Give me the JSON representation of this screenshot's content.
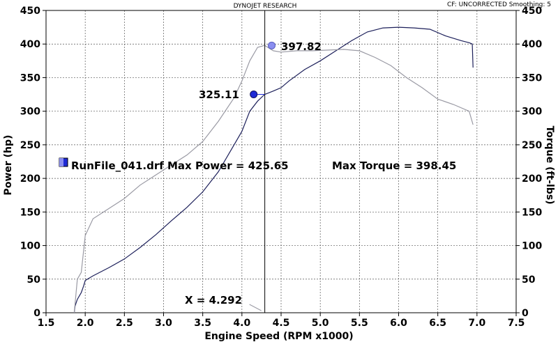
{
  "header": {
    "title": "DYNOJET RESEARCH",
    "correction": "CF: UNCORRECTED  Smoothing: 5"
  },
  "annotations": {
    "legend_text": "RunFile_041.drf Max Power = 425.65",
    "max_torque_text": "Max Torque = 398.45",
    "power_marker_label": "325.11",
    "torque_marker_label": "397.82",
    "cursor_label": "X = 4.292"
  },
  "colors": {
    "power_line": "#1c1f5a",
    "torque_line": "#9a9aa4",
    "power_marker": "#1f2bd6",
    "torque_marker": "#8a8ef0",
    "grid": "#555555"
  },
  "chart_data": {
    "type": "line",
    "xlabel": "Engine Speed (RPM x1000)",
    "ylabel": "Power (hp)",
    "y2label": "Torque (ft-lbs)",
    "xlim": [
      1.5,
      7.5
    ],
    "ylim": [
      0,
      450
    ],
    "y2lim": [
      0,
      450
    ],
    "x_ticks": [
      "1.5",
      "2.0",
      "2.5",
      "3.0",
      "3.5",
      "4.0",
      "4.5",
      "5.0",
      "5.5",
      "6.0",
      "6.5",
      "7.0",
      "7.5"
    ],
    "y_ticks": [
      "0",
      "50",
      "100",
      "150",
      "200",
      "250",
      "300",
      "350",
      "400",
      "450"
    ],
    "grid": true,
    "cursor_x": 4.292,
    "power_marker": {
      "x": 4.15,
      "y": 325.11
    },
    "torque_marker": {
      "x": 4.38,
      "y": 397.82
    },
    "series": [
      {
        "name": "Power",
        "axis": "left",
        "x": [
          1.86,
          1.87,
          1.9,
          1.95,
          1.98,
          2.0,
          2.1,
          2.3,
          2.5,
          2.7,
          2.9,
          3.1,
          3.3,
          3.5,
          3.7,
          3.9,
          4.0,
          4.1,
          4.2,
          4.29,
          4.4,
          4.5,
          4.6,
          4.8,
          5.0,
          5.2,
          5.4,
          5.6,
          5.8,
          6.0,
          6.2,
          6.4,
          6.6,
          6.8,
          6.9,
          6.94,
          6.95
        ],
        "values": [
          0,
          10,
          20,
          30,
          40,
          48,
          55,
          67,
          80,
          97,
          116,
          137,
          157,
          180,
          210,
          250,
          270,
          300,
          315,
          325,
          330,
          335,
          345,
          362,
          375,
          390,
          405,
          418,
          424,
          425,
          424,
          422,
          412,
          405,
          402,
          400,
          365
        ]
      },
      {
        "name": "Torque",
        "axis": "right",
        "x": [
          1.86,
          1.9,
          1.95,
          2.0,
          2.1,
          2.3,
          2.5,
          2.7,
          2.9,
          3.1,
          3.3,
          3.5,
          3.7,
          3.9,
          4.0,
          4.1,
          4.2,
          4.29,
          4.4,
          4.5,
          4.7,
          4.9,
          5.1,
          5.3,
          5.5,
          5.7,
          5.9,
          6.1,
          6.3,
          6.5,
          6.7,
          6.9,
          6.95
        ],
        "values": [
          0,
          50,
          60,
          115,
          140,
          155,
          170,
          190,
          205,
          220,
          235,
          255,
          285,
          320,
          345,
          375,
          395,
          398,
          390,
          388,
          390,
          390,
          391,
          392,
          390,
          380,
          368,
          350,
          335,
          318,
          310,
          300,
          280
        ]
      }
    ]
  }
}
